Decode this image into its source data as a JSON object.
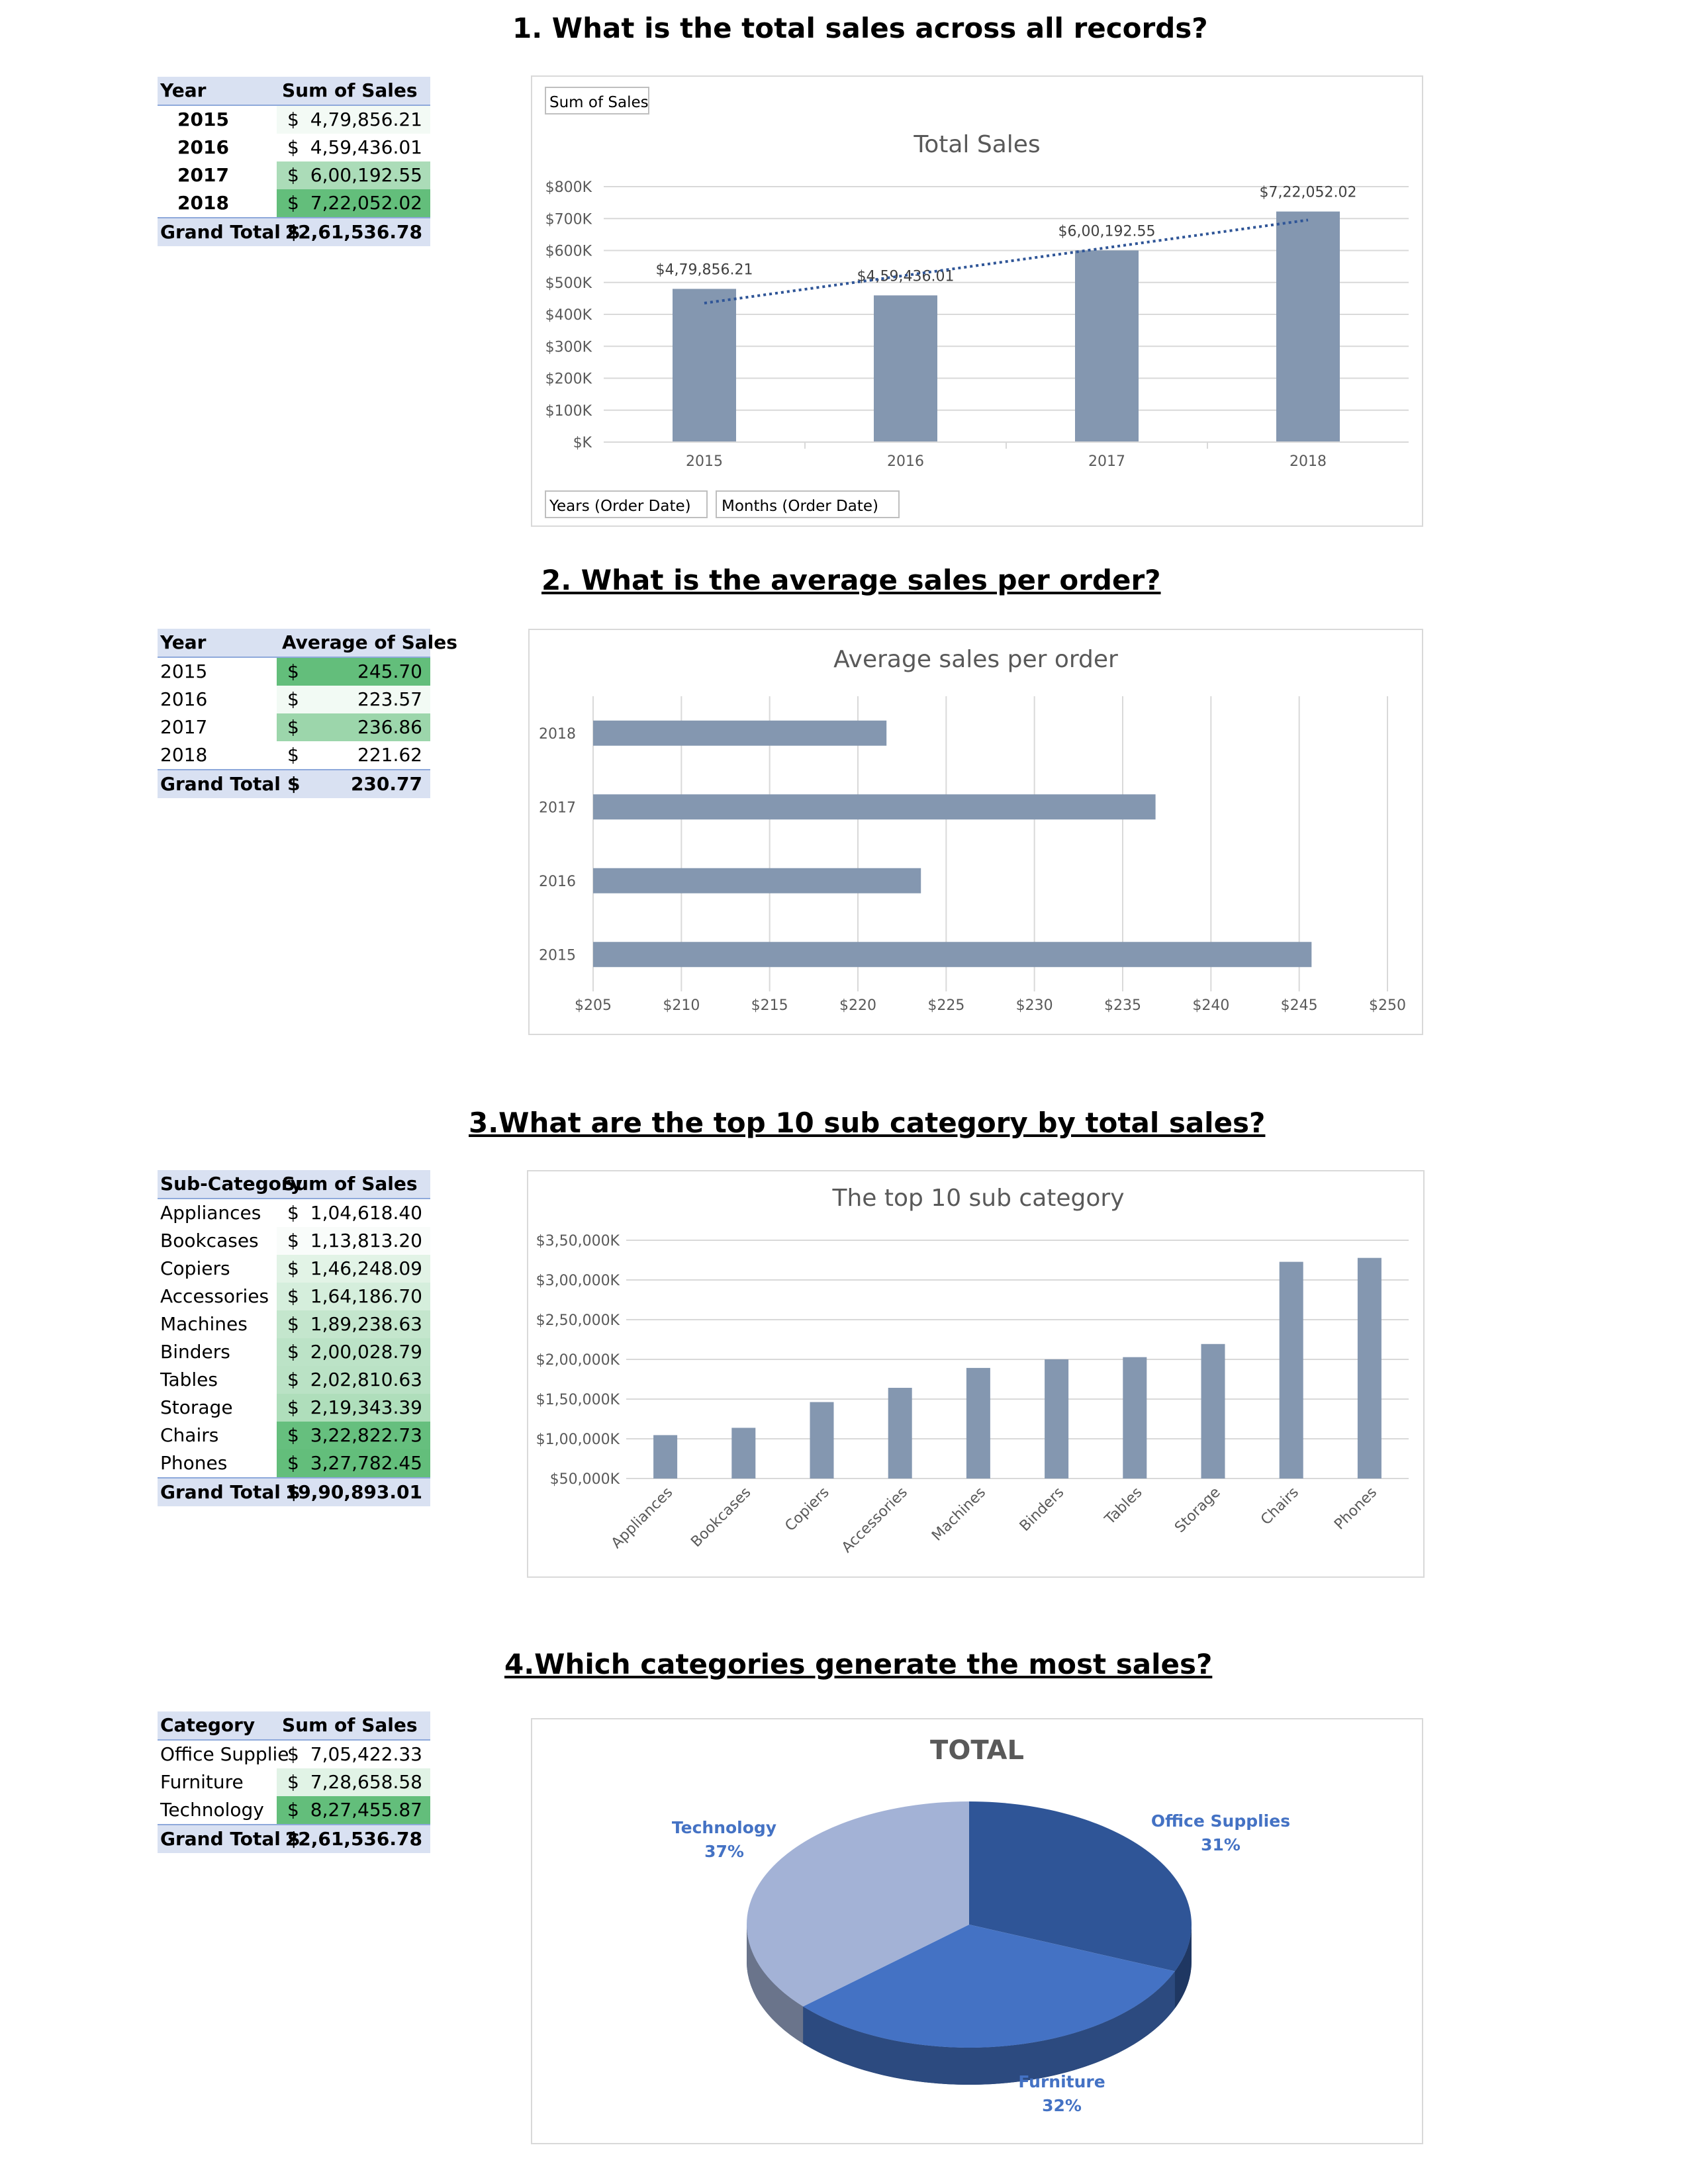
{
  "sections": [
    {
      "heading": "1. What is the total sales across all records?"
    },
    {
      "heading": "2. What is the average sales per order?"
    },
    {
      "heading": "3.What are the top 10 sub category by total sales?"
    },
    {
      "heading": "4.Which categories generate the most sales?"
    }
  ],
  "pivots": {
    "total_sales": {
      "col1": "Year",
      "col2": "Sum of Sales",
      "rows": [
        {
          "label": "2015",
          "cur": "$",
          "value": "4,79,856.21"
        },
        {
          "label": "2016",
          "cur": "$",
          "value": "4,59,436.01"
        },
        {
          "label": "2017",
          "cur": "$",
          "value": "6,00,192.55"
        },
        {
          "label": "2018",
          "cur": "$",
          "value": "7,22,052.02"
        }
      ],
      "total_label": "Grand Total",
      "total_cur": "$",
      "total_value": "22,61,536.78"
    },
    "avg_sales": {
      "col1": "Year",
      "col2": "Average of Sales",
      "rows": [
        {
          "label": "2015",
          "cur": "$",
          "value": "245.70"
        },
        {
          "label": "2016",
          "cur": "$",
          "value": "223.57"
        },
        {
          "label": "2017",
          "cur": "$",
          "value": "236.86"
        },
        {
          "label": "2018",
          "cur": "$",
          "value": "221.62"
        }
      ],
      "total_label": "Grand Total",
      "total_cur": "$",
      "total_value": "230.77"
    },
    "subcat_sales": {
      "col1": "Sub-Category",
      "col2": "Sum of Sales",
      "rows": [
        {
          "label": "Appliances",
          "cur": "$",
          "value": "1,04,618.40"
        },
        {
          "label": "Bookcases",
          "cur": "$",
          "value": "1,13,813.20"
        },
        {
          "label": "Copiers",
          "cur": "$",
          "value": "1,46,248.09"
        },
        {
          "label": "Accessories",
          "cur": "$",
          "value": "1,64,186.70"
        },
        {
          "label": "Machines",
          "cur": "$",
          "value": "1,89,238.63"
        },
        {
          "label": "Binders",
          "cur": "$",
          "value": "2,00,028.79"
        },
        {
          "label": "Tables",
          "cur": "$",
          "value": "2,02,810.63"
        },
        {
          "label": "Storage",
          "cur": "$",
          "value": "2,19,343.39"
        },
        {
          "label": "Chairs",
          "cur": "$",
          "value": "3,22,822.73"
        },
        {
          "label": "Phones",
          "cur": "$",
          "value": "3,27,782.45"
        }
      ],
      "total_label": "Grand Total",
      "total_cur": "$",
      "total_value": "19,90,893.01"
    },
    "category_sales": {
      "col1": "Category",
      "col2": "Sum of Sales",
      "rows": [
        {
          "label": "Office Supplie",
          "cur": "$",
          "value": "7,05,422.33"
        },
        {
          "label": "Furniture",
          "cur": "$",
          "value": "7,28,658.58"
        },
        {
          "label": "Technology",
          "cur": "$",
          "value": "8,27,455.87"
        }
      ],
      "total_label": "Grand Total",
      "total_cur": "$",
      "total_value": "22,61,536.78"
    }
  },
  "colors": {
    "bar": "#8497b0",
    "trendline": "#2f5597",
    "pivot_header": "#d9e1f2",
    "pivot_border": "#8ea9db",
    "cf_high": "#63be7b",
    "cf_low": "#ffffff",
    "pie_technology": "#a3b2d6",
    "pie_furniture": "#4472c4",
    "pie_office": "#2f5597",
    "pie_label": "#4472c4"
  },
  "chart_data": [
    {
      "type": "bar",
      "title": "Total Sales",
      "field_button": "Sum of Sales",
      "axis_buttons": [
        "Years (Order Date)",
        "Months (Order Date)"
      ],
      "categories": [
        "2015",
        "2016",
        "2017",
        "2018"
      ],
      "values": [
        479856.21,
        459436.01,
        600192.55,
        722052.02
      ],
      "data_labels": [
        "$4,79,856.21",
        "$4,59,436.01",
        "$6,00,192.55",
        "$7,22,052.02"
      ],
      "yticks": [
        "$K",
        "$100K",
        "$200K",
        "$300K",
        "$400K",
        "$500K",
        "$600K",
        "$700K",
        "$800K"
      ],
      "ylim": [
        0,
        800000
      ],
      "trendline": "linear",
      "grid": true
    },
    {
      "type": "bar",
      "orientation": "horizontal",
      "title": "Average sales per order",
      "categories": [
        "2018",
        "2017",
        "2016",
        "2015"
      ],
      "values": [
        221.62,
        236.86,
        223.57,
        245.7
      ],
      "xticks": [
        "$205",
        "$210",
        "$215",
        "$220",
        "$225",
        "$230",
        "$235",
        "$240",
        "$245",
        "$250"
      ],
      "xlim": [
        205,
        250
      ],
      "grid": true
    },
    {
      "type": "bar",
      "title": "The top 10 sub category",
      "categories": [
        "Appliances",
        "Bookcases",
        "Copiers",
        "Accessories",
        "Machines",
        "Binders",
        "Tables",
        "Storage",
        "Chairs",
        "Phones"
      ],
      "values": [
        104618.4,
        113813.2,
        146248.09,
        164186.7,
        189238.63,
        200028.79,
        202810.63,
        219343.39,
        322822.73,
        327782.45
      ],
      "yticks": [
        "$50,000K",
        "$1,00,000K",
        "$1,50,000K",
        "$2,00,000K",
        "$2,50,000K",
        "$3,00,000K",
        "$3,50,000K"
      ],
      "ylim": [
        50000,
        350000
      ],
      "grid": true
    },
    {
      "type": "pie",
      "title": "TOTAL",
      "slices": [
        {
          "label": "Office Supplies",
          "pct_label": "31%",
          "value": 705422.33
        },
        {
          "label": "Furniture",
          "pct_label": "32%",
          "value": 728658.58
        },
        {
          "label": "Technology",
          "pct_label": "37%",
          "value": 827455.87
        }
      ]
    }
  ]
}
